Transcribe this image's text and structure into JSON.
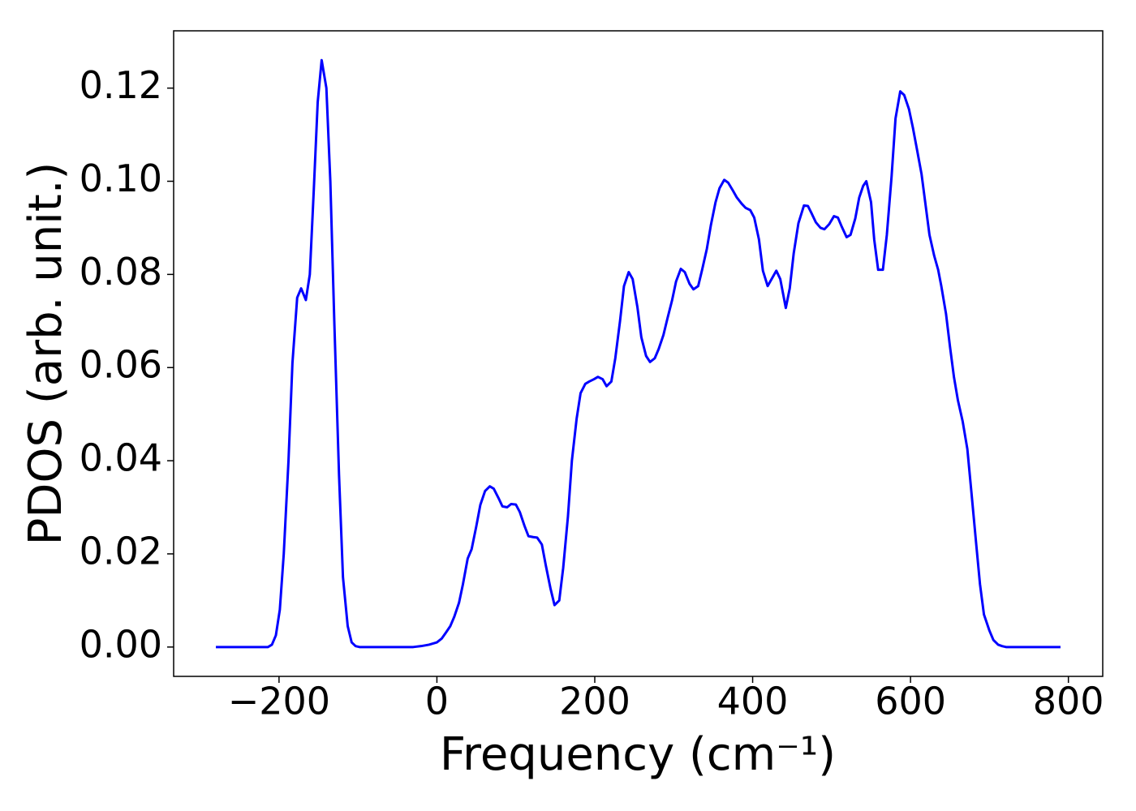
{
  "chart_data": {
    "type": "line",
    "xlabel": "Frequency (cm⁻¹)",
    "ylabel": "PDOS (arb. unit.)",
    "xlim": [
      -333.5,
      843.5
    ],
    "ylim": [
      -0.0063,
      0.1323
    ],
    "xticks": [
      {
        "value": -200,
        "label": "−200"
      },
      0,
      200,
      400,
      600,
      800
    ],
    "yticks": [
      {
        "value": 0,
        "label": "0.00"
      },
      {
        "value": 0.02,
        "label": "0.02"
      },
      {
        "value": 0.04,
        "label": "0.04"
      },
      {
        "value": 0.06,
        "label": "0.06"
      },
      {
        "value": 0.08,
        "label": "0.08"
      },
      {
        "value": 0.1,
        "label": "0.10"
      },
      {
        "value": 0.12,
        "label": "0.12"
      }
    ],
    "series": [
      {
        "color": "#0000ff",
        "x": [
          -280,
          -214,
          -209,
          -204,
          -199,
          -194,
          -188,
          -183,
          -177,
          -172,
          -166,
          -161,
          -156,
          -151,
          -146,
          -140,
          -135,
          -130,
          -124,
          -119,
          -113,
          -108,
          -103,
          -98,
          -60,
          -30,
          -20,
          -10,
          0,
          6,
          11,
          17,
          22,
          28,
          33,
          39,
          44,
          50,
          55,
          61,
          67,
          72,
          78,
          83,
          89,
          94,
          100,
          105,
          111,
          116,
          122,
          127,
          133,
          138,
          144,
          149,
          155,
          160,
          166,
          171,
          177,
          182,
          188,
          193,
          199,
          204,
          210,
          215,
          221,
          226,
          232,
          237,
          243,
          248,
          254,
          259,
          265,
          270,
          276,
          281,
          287,
          292,
          298,
          303,
          309,
          314,
          320,
          325,
          331,
          336,
          342,
          347,
          353,
          358,
          364,
          369,
          375,
          380,
          386,
          391,
          397,
          402,
          408,
          413,
          419,
          424,
          430,
          435,
          442,
          447,
          452,
          458,
          465,
          470,
          475,
          480,
          486,
          491,
          497,
          503,
          508,
          513,
          519,
          524,
          530,
          535,
          540,
          544,
          550,
          554,
          559,
          565,
          570,
          576,
          581,
          587,
          592,
          598,
          603,
          608,
          614,
          619,
          624,
          630,
          635,
          639,
          645,
          650,
          655,
          660,
          666,
          672,
          677,
          683,
          688,
          693,
          700,
          705,
          711,
          716,
          721,
          790
        ],
        "values": [
          0,
          0,
          0.0005,
          0.0025,
          0.008,
          0.02,
          0.04,
          0.061,
          0.075,
          0.077,
          0.0745,
          0.08,
          0.098,
          0.117,
          0.126,
          0.12,
          0.1,
          0.07,
          0.037,
          0.015,
          0.0045,
          0.001,
          0.0002,
          0,
          0,
          0,
          0.0002,
          0.0005,
          0.001,
          0.0018,
          0.003,
          0.0045,
          0.0065,
          0.0095,
          0.0135,
          0.019,
          0.021,
          0.026,
          0.0305,
          0.0335,
          0.0345,
          0.034,
          0.032,
          0.0302,
          0.03,
          0.0307,
          0.0306,
          0.029,
          0.026,
          0.0238,
          0.0236,
          0.0235,
          0.022,
          0.0175,
          0.0125,
          0.009,
          0.01,
          0.017,
          0.028,
          0.04,
          0.049,
          0.0545,
          0.0565,
          0.057,
          0.0575,
          0.058,
          0.0575,
          0.056,
          0.057,
          0.062,
          0.07,
          0.0775,
          0.0805,
          0.079,
          0.073,
          0.0665,
          0.0625,
          0.0612,
          0.062,
          0.064,
          0.067,
          0.0705,
          0.0745,
          0.0785,
          0.0812,
          0.0805,
          0.078,
          0.0768,
          0.0775,
          0.081,
          0.0855,
          0.0905,
          0.0955,
          0.0985,
          0.1003,
          0.0997,
          0.098,
          0.0965,
          0.0952,
          0.0943,
          0.0938,
          0.0922,
          0.0875,
          0.0808,
          0.0775,
          0.079,
          0.0808,
          0.079,
          0.0728,
          0.077,
          0.0845,
          0.091,
          0.0948,
          0.0947,
          0.093,
          0.0912,
          0.09,
          0.0897,
          0.0908,
          0.0925,
          0.0922,
          0.0902,
          0.088,
          0.0885,
          0.092,
          0.0965,
          0.099,
          0.1,
          0.0955,
          0.0875,
          0.081,
          0.081,
          0.0885,
          0.101,
          0.1135,
          0.1193,
          0.1185,
          0.1155,
          0.1115,
          0.107,
          0.1015,
          0.095,
          0.0885,
          0.084,
          0.081,
          0.0775,
          0.0715,
          0.0645,
          0.058,
          0.053,
          0.0485,
          0.0425,
          0.0335,
          0.0225,
          0.0135,
          0.007,
          0.0035,
          0.0015,
          0.0005,
          0.0002,
          0,
          0
        ]
      }
    ]
  }
}
